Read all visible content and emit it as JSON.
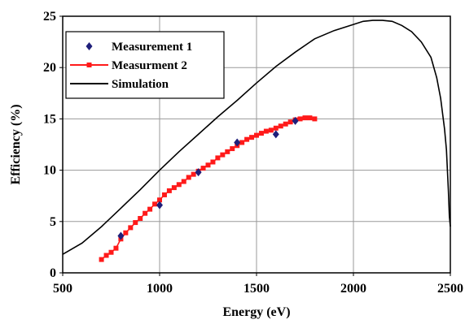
{
  "chart_data": {
    "type": "scatter",
    "xlabel": "Energy (eV)",
    "ylabel": "Efficiency (%)",
    "xlim": [
      500,
      2500
    ],
    "ylim": [
      0,
      25
    ],
    "xticks": [
      500,
      1000,
      1500,
      2000,
      2500
    ],
    "yticks": [
      0,
      5,
      10,
      15,
      20,
      25
    ],
    "grid": true,
    "legend_position": "top-left",
    "series": [
      {
        "name": "Measurement 1",
        "style": "markers",
        "marker": "diamond",
        "color": "#1f1f7a",
        "x": [
          800,
          1000,
          1200,
          1400,
          1600,
          1700
        ],
        "y": [
          3.6,
          6.6,
          9.8,
          12.7,
          13.5,
          14.8
        ]
      },
      {
        "name": "Measurment 2",
        "style": "line-markers",
        "marker": "square",
        "color": "#ff1a1a",
        "x": [
          700,
          725,
          750,
          775,
          800,
          825,
          850,
          875,
          900,
          925,
          950,
          975,
          1000,
          1025,
          1050,
          1075,
          1100,
          1125,
          1150,
          1175,
          1200,
          1225,
          1250,
          1275,
          1300,
          1325,
          1350,
          1375,
          1400,
          1425,
          1450,
          1475,
          1500,
          1525,
          1550,
          1575,
          1600,
          1625,
          1650,
          1675,
          1700,
          1725,
          1750,
          1775,
          1800
        ],
        "y": [
          1.3,
          1.7,
          2.0,
          2.4,
          3.3,
          3.9,
          4.4,
          4.9,
          5.3,
          5.8,
          6.2,
          6.7,
          7.1,
          7.6,
          8.0,
          8.3,
          8.6,
          8.9,
          9.3,
          9.6,
          9.9,
          10.2,
          10.5,
          10.8,
          11.2,
          11.5,
          11.8,
          12.1,
          12.4,
          12.7,
          13.0,
          13.2,
          13.4,
          13.6,
          13.8,
          13.9,
          14.1,
          14.3,
          14.5,
          14.7,
          14.9,
          15.0,
          15.1,
          15.1,
          15.0
        ]
      },
      {
        "name": "Simulation",
        "style": "line",
        "color": "#000000",
        "x": [
          500,
          600,
          700,
          800,
          900,
          1000,
          1100,
          1200,
          1300,
          1400,
          1500,
          1600,
          1700,
          1800,
          1900,
          2000,
          2050,
          2100,
          2150,
          2200,
          2250,
          2300,
          2350,
          2400,
          2430,
          2450,
          2470,
          2480,
          2490,
          2495,
          2500
        ],
        "y": [
          1.8,
          2.9,
          4.5,
          6.3,
          8.1,
          10.0,
          11.8,
          13.5,
          15.2,
          16.8,
          18.5,
          20.1,
          21.5,
          22.8,
          23.6,
          24.2,
          24.5,
          24.6,
          24.6,
          24.5,
          24.1,
          23.5,
          22.5,
          21.0,
          19.0,
          17.0,
          14.0,
          12.0,
          8.0,
          5.5,
          4.5
        ]
      }
    ]
  }
}
